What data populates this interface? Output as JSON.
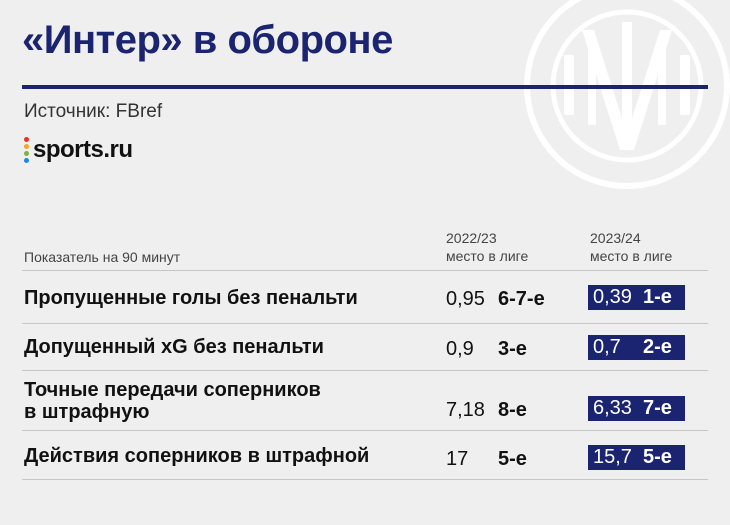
{
  "title": "«Интер» в обороне",
  "source": "Источник: FBref",
  "brand": {
    "name": "sports.ru",
    "dot_colors": [
      "#e6332a",
      "#f5a623",
      "#7cb342",
      "#1e88e5",
      "#8e24aa"
    ]
  },
  "colors": {
    "accent": "#1b2470",
    "background": "#efefef",
    "watermark": "#ffffff"
  },
  "logo_icon": "inter-club-crest-watermark",
  "table": {
    "metric_header": "Показатель на 90 минут",
    "season1": {
      "year": "2022/23",
      "sub": "место в лиге"
    },
    "season2": {
      "year": "2023/24",
      "sub": "место в лиге"
    },
    "rows": [
      {
        "label": "Пропущенные голы без пенальти",
        "v1": "0,95",
        "r1": "6-7-е",
        "v2": "0,39",
        "r2": "1-е"
      },
      {
        "label": "Допущенный xG без пенальти",
        "v1": "0,9",
        "r1": "3-е",
        "v2": "0,7",
        "r2": "2-е"
      },
      {
        "label_line1": "Точные передачи соперников",
        "label_line2": "в штрафную",
        "v1": "7,18",
        "r1": "8-е",
        "v2": "6,33",
        "r2": "7-е"
      },
      {
        "label": "Действия соперников в штрафной",
        "v1": "17",
        "r1": "5-е",
        "v2": "15,7",
        "r2": "5-е"
      }
    ]
  }
}
